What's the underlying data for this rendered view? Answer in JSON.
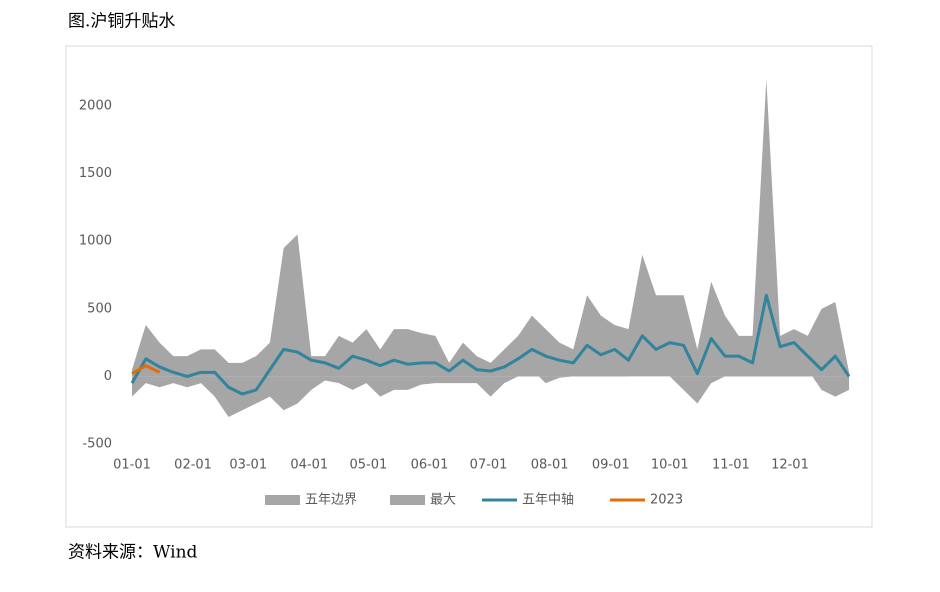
{
  "title": "图.沪铜升贴水",
  "source": "资料来源：Wind",
  "chart_data": {
    "type": "line",
    "legend": "bottom",
    "grid": false,
    "x": [
      "01-01",
      "01-08",
      "01-15",
      "01-22",
      "01-29",
      "02-05",
      "02-12",
      "02-19",
      "02-26",
      "03-05",
      "03-12",
      "03-19",
      "03-26",
      "04-02",
      "04-09",
      "04-16",
      "04-23",
      "04-30",
      "05-07",
      "05-14",
      "05-21",
      "05-28",
      "06-04",
      "06-11",
      "06-18",
      "06-25",
      "07-02",
      "07-09",
      "07-16",
      "07-23",
      "07-30",
      "08-06",
      "08-13",
      "08-20",
      "08-27",
      "09-03",
      "09-10",
      "09-17",
      "09-24",
      "10-01",
      "10-08",
      "10-15",
      "10-22",
      "10-29",
      "11-05",
      "11-12",
      "11-19",
      "11-26",
      "12-03",
      "12-10",
      "12-17",
      "12-24",
      "12-31"
    ],
    "xticks": [
      "01-01",
      "02-01",
      "03-01",
      "04-01",
      "05-01",
      "06-01",
      "07-01",
      "08-01",
      "09-01",
      "10-01",
      "11-01",
      "12-01"
    ],
    "ylim": [
      -500,
      2200
    ],
    "yticks": [
      -500,
      0,
      500,
      1000,
      1500,
      2000
    ],
    "series": [
      {
        "name": "五年边界",
        "type": "area",
        "color": "#a6a6a6",
        "values": [
          -150,
          -50,
          -80,
          -50,
          -80,
          -50,
          -150,
          -300,
          -250,
          -200,
          -150,
          -250,
          -200,
          -100,
          -30,
          -50,
          -100,
          -50,
          -150,
          -100,
          -100,
          -60,
          -50,
          -50,
          -50,
          -50,
          -150,
          -50,
          0,
          50,
          -50,
          -10,
          0,
          100,
          100,
          50,
          0,
          0,
          0,
          0,
          -100,
          -200,
          -50,
          0,
          50,
          0,
          300,
          100,
          0,
          50,
          -100,
          -150,
          -100
        ]
      },
      {
        "name": "最大",
        "type": "area",
        "color": "#a6a6a6",
        "values": [
          50,
          380,
          250,
          150,
          150,
          200,
          200,
          100,
          100,
          150,
          250,
          950,
          1050,
          150,
          150,
          300,
          250,
          350,
          200,
          350,
          350,
          320,
          300,
          100,
          250,
          150,
          100,
          200,
          300,
          450,
          350,
          250,
          200,
          600,
          450,
          380,
          350,
          900,
          600,
          600,
          600,
          200,
          700,
          450,
          300,
          300,
          2200,
          300,
          350,
          300,
          500,
          550,
          30
        ]
      },
      {
        "name": "五年中轴",
        "type": "line",
        "color": "#31849b",
        "values": [
          -50,
          130,
          70,
          30,
          0,
          30,
          30,
          -80,
          -130,
          -100,
          50,
          200,
          180,
          120,
          100,
          60,
          150,
          120,
          80,
          120,
          90,
          100,
          100,
          40,
          120,
          50,
          40,
          70,
          130,
          200,
          150,
          120,
          100,
          230,
          160,
          200,
          120,
          300,
          200,
          250,
          230,
          20,
          280,
          150,
          150,
          100,
          600,
          220,
          250,
          150,
          50,
          150,
          0
        ]
      },
      {
        "name": "2023",
        "type": "line",
        "color": "#e36c09",
        "values": [
          20,
          80,
          30,
          null,
          null,
          null,
          null,
          null,
          null,
          null,
          null,
          null,
          null,
          null,
          null,
          null,
          null,
          null,
          null,
          null,
          null,
          null,
          null,
          null,
          null,
          null,
          null,
          null,
          null,
          null,
          null,
          null,
          null,
          null,
          null,
          null,
          null,
          null,
          null,
          null,
          null,
          null,
          null,
          null,
          null,
          null,
          null,
          null,
          null,
          null,
          null,
          null,
          null
        ]
      }
    ]
  }
}
